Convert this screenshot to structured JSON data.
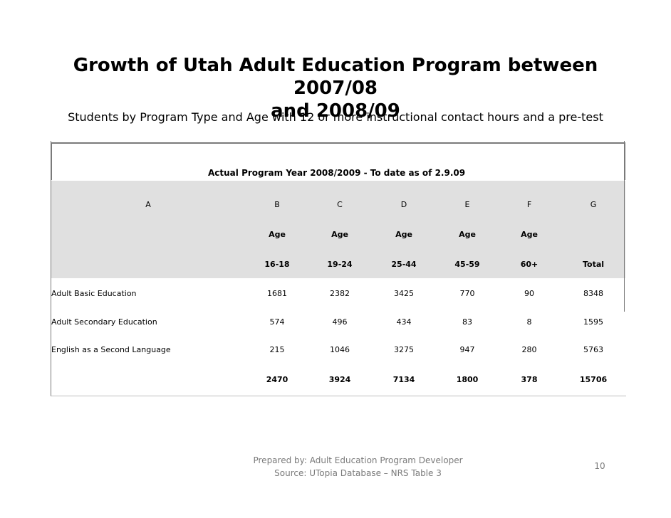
{
  "slide": {
    "title_line1": "Growth of Utah Adult Education Program between 2007/08",
    "title_line2": "and 2008/09",
    "subtitle": "Students by Program Type and Age with 12 or more instructional contact hours and a pre-test"
  },
  "table": {
    "header": "Actual Program Year 2008/2009 - To date as of 2.9.09",
    "column_letters": [
      "A",
      "B",
      "C",
      "D",
      "E",
      "F",
      "G"
    ],
    "age_row": [
      "",
      "Age",
      "Age",
      "Age",
      "Age",
      "Age",
      ""
    ],
    "range_row": [
      "",
      "16-18",
      "19-24",
      "25-44",
      "45-59",
      "60+",
      "Total"
    ],
    "rows": [
      [
        "Adult Basic Education",
        "1681",
        "2382",
        "3425",
        "770",
        "90",
        "8348"
      ],
      [
        "Adult Secondary Education",
        "574",
        "496",
        "434",
        "83",
        "8",
        "1595"
      ],
      [
        "English as a Second Language",
        "215",
        "1046",
        "3275",
        "947",
        "280",
        "5763"
      ]
    ],
    "totals_row": [
      "",
      "2470",
      "3924",
      "7134",
      "1800",
      "378",
      "15706"
    ]
  },
  "footer": {
    "line1": "Prepared by: Adult Education Program Developer",
    "line2": "Source: UTopia Database – NRS Table 3",
    "page_number": "10"
  }
}
